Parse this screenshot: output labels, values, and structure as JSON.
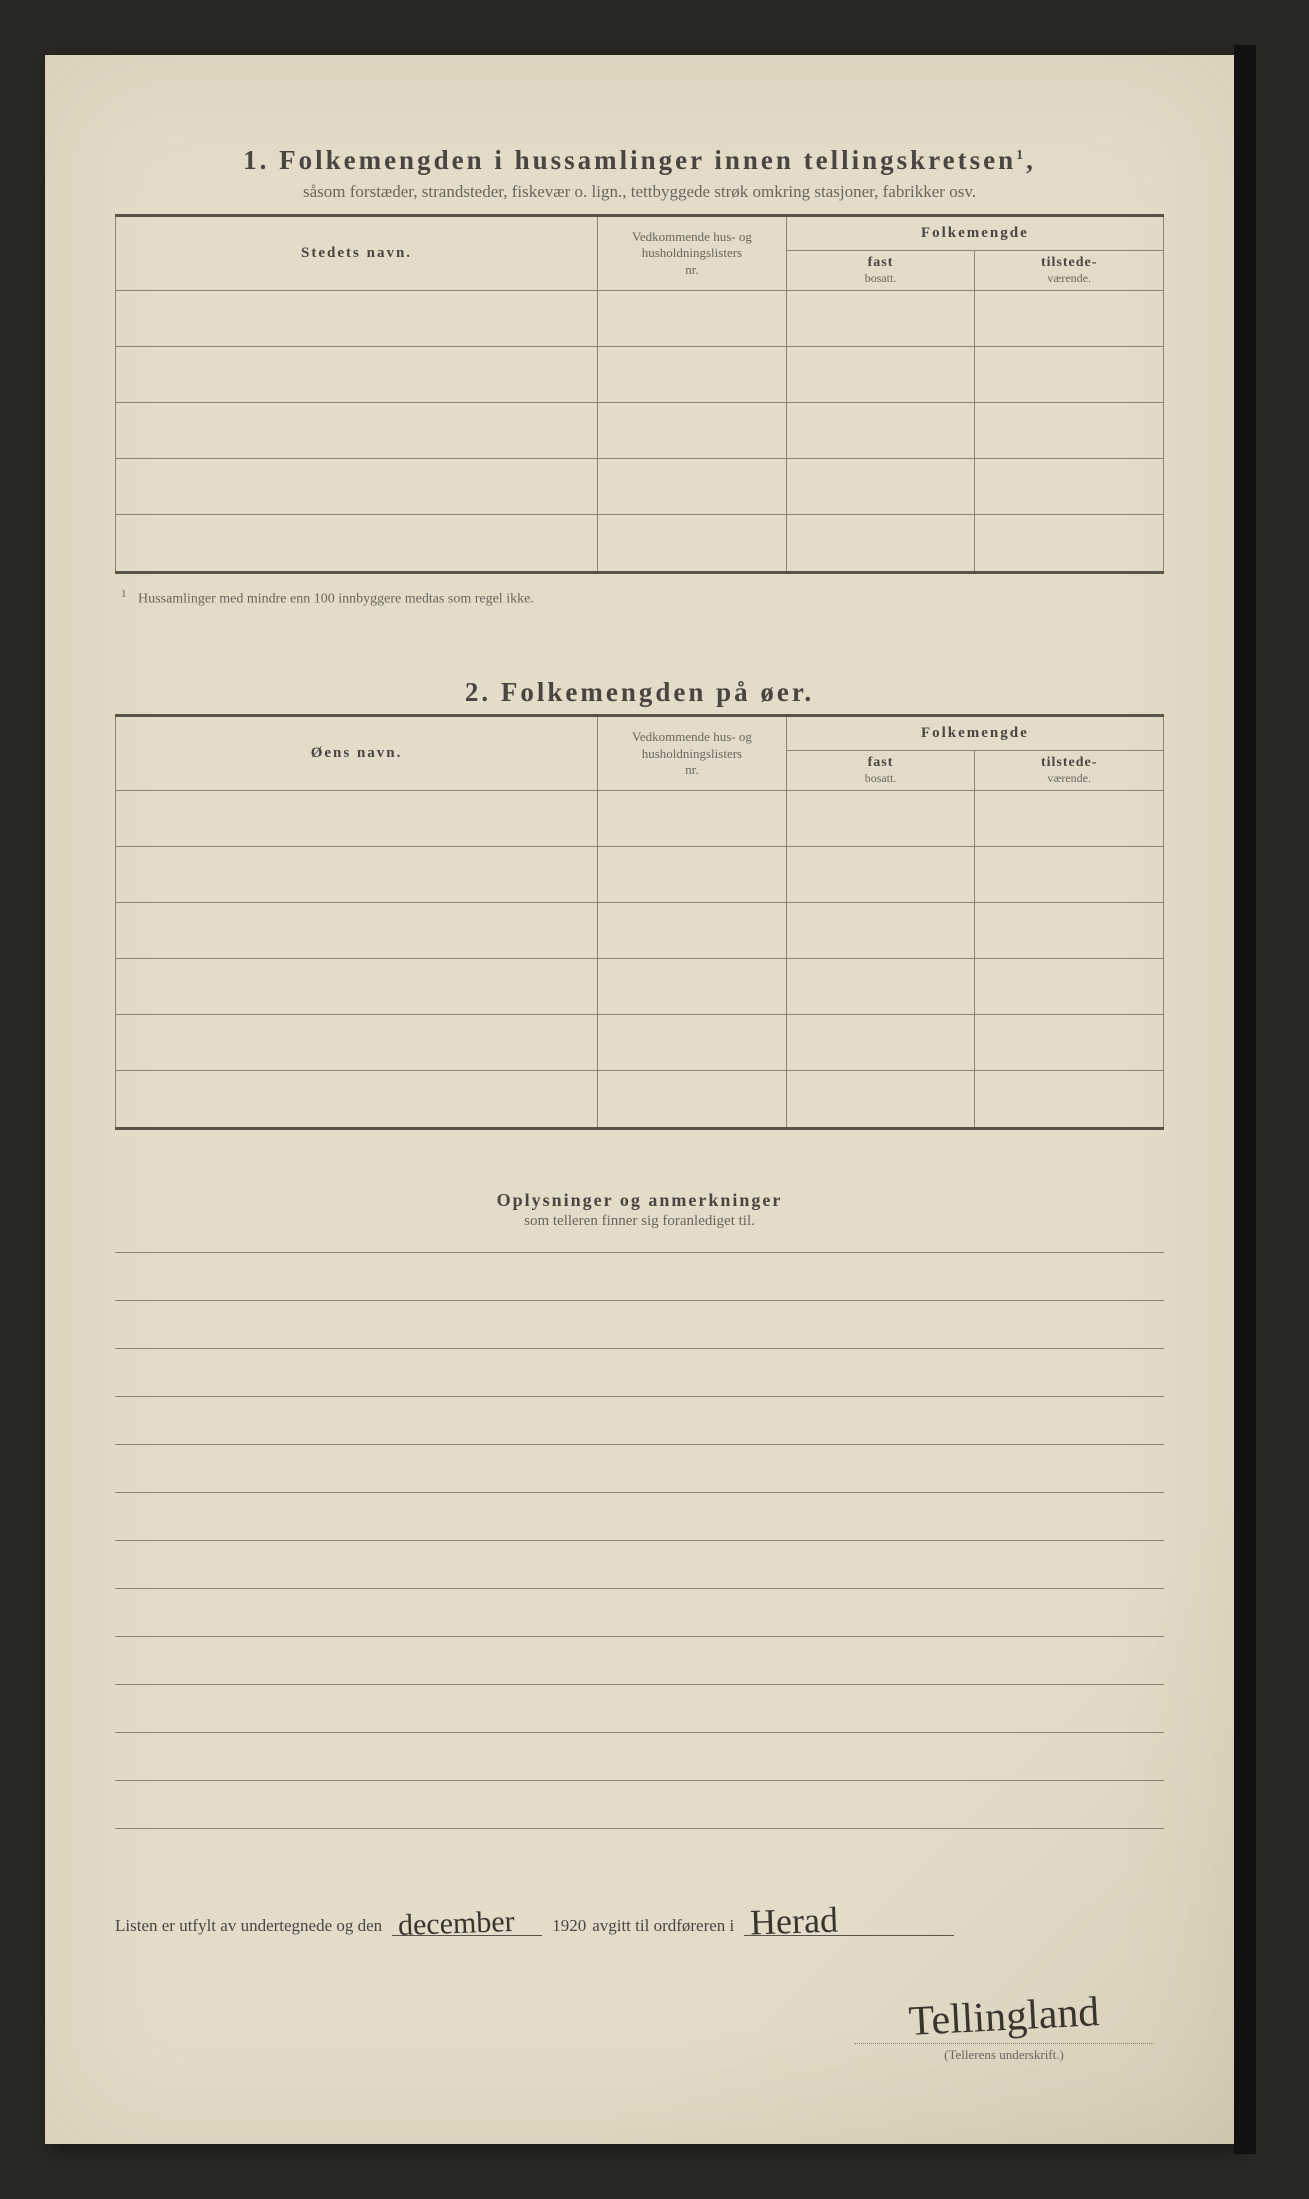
{
  "section1": {
    "num": "1.",
    "title": "Folkemengden i hussamlinger innen tellingskretsen",
    "title_sup": "1",
    "subtitle": "såsom forstæder, strandsteder, fiskevær o. lign., tettbyggede strøk omkring stasjoner, fabrikker osv.",
    "cols": {
      "name": "Stedets navn.",
      "ref_l1": "Vedkommende hus- og",
      "ref_l2": "husholdningslisters",
      "ref_l3": "nr.",
      "folke": "Folkemengde",
      "fast_l1": "fast",
      "fast_l2": "bosatt.",
      "til_l1": "tilstede-",
      "til_l2": "værende."
    },
    "rows": [
      "",
      "",
      "",
      "",
      ""
    ],
    "footnote_mark": "1",
    "footnote": "Hussamlinger med mindre enn 100 innbyggere medtas som regel ikke."
  },
  "section2": {
    "num": "2.",
    "title": "Folkemengden på øer.",
    "cols": {
      "name": "Øens navn.",
      "ref_l1": "Vedkommende hus- og",
      "ref_l2": "husholdningslisters",
      "ref_l3": "nr.",
      "folke": "Folkemengde",
      "fast_l1": "fast",
      "fast_l2": "bosatt.",
      "til_l1": "tilstede-",
      "til_l2": "værende."
    },
    "rows": [
      "",
      "",
      "",
      "",
      "",
      ""
    ]
  },
  "remarks": {
    "title": "Oplysninger og anmerkninger",
    "subtitle": "som telleren finner sig foranlediget til.",
    "line_count": 12
  },
  "signoff": {
    "pre": "Listen er utfylt av undertegnede og den",
    "date_hand": "december",
    "year": "1920",
    "mid": "avgitt til ordføreren i",
    "place_hand": "Herad",
    "signature": "Tellingland",
    "caption": "(Tellerens underskrift.)"
  },
  "style": {
    "paper": "#e4dcc9",
    "ink": "#4a4540",
    "line": "#5a534a"
  }
}
